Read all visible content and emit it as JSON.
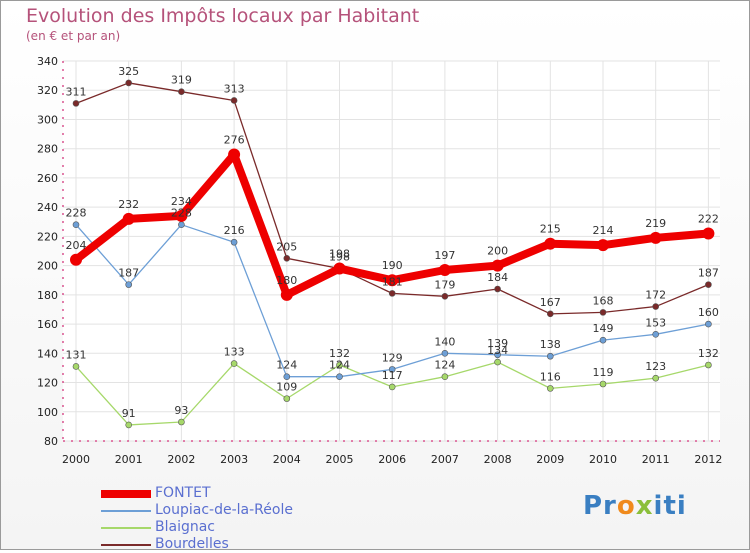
{
  "title": "Evolution des Impôts locaux par Habitant",
  "subtitle": "(en € et par an)",
  "logo": {
    "p1": "Pr",
    "p2": "o",
    "p3": "x",
    "p4": "iti"
  },
  "chart_data": {
    "type": "line",
    "title": "Evolution des Impôts locaux par Habitant",
    "subtitle": "(en € et par an)",
    "xlabel": "",
    "ylabel": "",
    "ylim": [
      80,
      340
    ],
    "yticks": [
      80,
      100,
      120,
      140,
      160,
      180,
      200,
      220,
      240,
      260,
      280,
      300,
      320,
      340
    ],
    "categories": [
      "2000",
      "2001",
      "2002",
      "2003",
      "2004",
      "2005",
      "2006",
      "2007",
      "2008",
      "2009",
      "2010",
      "2011",
      "2012"
    ],
    "legend_position": "bottom-left",
    "series": [
      {
        "name": "FONTET",
        "color": "#ee0000",
        "values": [
          204,
          232,
          234,
          276,
          180,
          198,
          190,
          197,
          200,
          215,
          214,
          219,
          222
        ]
      },
      {
        "name": "Loupiac-de-la-Réole",
        "color": "#6d9fd6",
        "values": [
          228,
          187,
          228,
          216,
          124,
          124,
          129,
          140,
          139,
          138,
          149,
          153,
          160
        ]
      },
      {
        "name": "Blaignac",
        "color": "#a6d86a",
        "values": [
          131,
          91,
          93,
          133,
          109,
          132,
          117,
          124,
          134,
          116,
          119,
          123,
          132
        ]
      },
      {
        "name": "Bourdelles",
        "color": "#7a2a2a",
        "values": [
          311,
          325,
          319,
          313,
          205,
          198,
          181,
          179,
          184,
          167,
          168,
          172,
          187
        ]
      }
    ]
  }
}
